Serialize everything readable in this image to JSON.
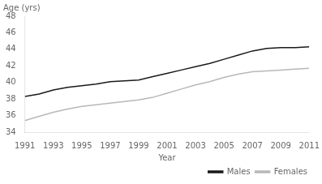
{
  "chart_data": {
    "type": "line",
    "xlabel": "Year",
    "ylabel": "Age (yrs)",
    "x": [
      1991,
      1992,
      1993,
      1994,
      1995,
      1996,
      1997,
      1998,
      1999,
      2000,
      2001,
      2002,
      2003,
      2004,
      2005,
      2006,
      2007,
      2008,
      2009,
      2010,
      2011
    ],
    "series": [
      {
        "name": "Males",
        "color": "#1a1a1a",
        "values": [
          38.3,
          38.6,
          39.1,
          39.4,
          39.6,
          39.8,
          40.1,
          40.2,
          40.3,
          40.7,
          41.1,
          41.5,
          41.9,
          42.3,
          42.8,
          43.3,
          43.8,
          44.1,
          44.2,
          44.2,
          44.3
        ]
      },
      {
        "name": "Females",
        "color": "#b8b8b8",
        "values": [
          35.4,
          35.9,
          36.4,
          36.8,
          37.1,
          37.3,
          37.5,
          37.7,
          37.9,
          38.2,
          38.7,
          39.2,
          39.7,
          40.1,
          40.6,
          41.0,
          41.3,
          41.4,
          41.5,
          41.6,
          41.7
        ]
      }
    ],
    "xlim": [
      1991,
      2011
    ],
    "xticks": [
      1991,
      1993,
      1995,
      1997,
      1999,
      2001,
      2003,
      2005,
      2007,
      2009,
      2011
    ],
    "ylim": [
      34,
      48
    ],
    "yticks": [
      34,
      36,
      38,
      40,
      42,
      44,
      46,
      48
    ],
    "grid": false,
    "legend": "lower right"
  }
}
